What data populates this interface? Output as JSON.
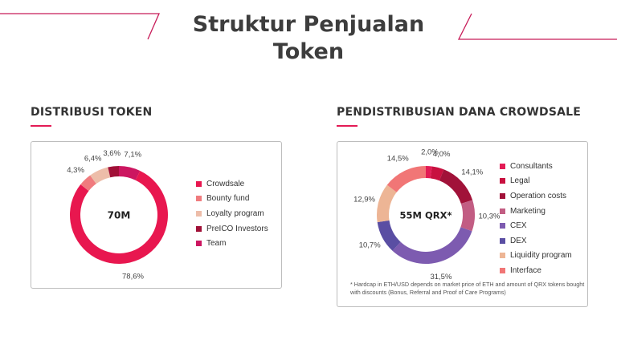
{
  "page": {
    "title_line1": "Struktur Penjualan",
    "title_line2": "Token"
  },
  "colors": {
    "crowdsale": "#e8174f",
    "bounty_fund": "#f07b7e",
    "loyalty_program": "#edbda9",
    "preico_investors": "#a01037",
    "team": "#cc1660",
    "consultants": "#e31b55",
    "legal": "#c8103f",
    "operation_costs": "#a11239",
    "marketing": "#c25d83",
    "cex": "#7d5bb0",
    "dex": "#5a4ea3",
    "liquidity_program": "#edb595",
    "interface": "#f17676",
    "accent": "#e31b55",
    "border": "#bdbdbd"
  },
  "chart_data": [
    {
      "type": "pie",
      "title": "DISTRIBUSI TOKEN",
      "center_label": "70M",
      "slices": [
        {
          "name": "Crowdsale",
          "value": 78.6,
          "label": "78,6%",
          "color": "#e8174f"
        },
        {
          "name": "Bounty fund",
          "value": 4.3,
          "label": "4,3%",
          "color": "#f07b7e"
        },
        {
          "name": "Loyalty program",
          "value": 6.4,
          "label": "6,4%",
          "color": "#edbda9"
        },
        {
          "name": "PreICO Investors",
          "value": 3.6,
          "label": "3,6%",
          "color": "#a01037"
        },
        {
          "name": "Team",
          "value": 7.1,
          "label": "7,1%",
          "color": "#cc1660"
        }
      ],
      "slice_order": [
        "Team",
        "Crowdsale",
        "Bounty fund",
        "Loyalty program",
        "PreICO Investors"
      ],
      "legend": [
        "Crowdsale",
        "Bounty fund",
        "Loyalty program",
        "PreICO Investors",
        "Team"
      ]
    },
    {
      "type": "pie",
      "title": "PENDISTRIBUSIAN DANA CROWDSALE",
      "center_label": "55M QRX*",
      "slices": [
        {
          "name": "Consultants",
          "value": 2.0,
          "label": "2,0%",
          "color": "#e31b55"
        },
        {
          "name": "Legal",
          "value": 4.0,
          "label": "4,0%",
          "color": "#c8103f"
        },
        {
          "name": "Operation costs",
          "value": 14.1,
          "label": "14,1%",
          "color": "#a11239"
        },
        {
          "name": "Marketing",
          "value": 10.3,
          "label": "10,3%",
          "color": "#c25d83"
        },
        {
          "name": "CEX",
          "value": 31.5,
          "label": "31,5%",
          "color": "#7d5bb0"
        },
        {
          "name": "DEX",
          "value": 10.7,
          "label": "10,7%",
          "color": "#5a4ea3"
        },
        {
          "name": "Liquidity program",
          "value": 12.9,
          "label": "12,9%",
          "color": "#edb595"
        },
        {
          "name": "Interface",
          "value": 14.5,
          "label": "14,5%",
          "color": "#f17676"
        }
      ],
      "legend": [
        "Consultants",
        "Legal",
        "Operation costs",
        "Marketing",
        "CEX",
        "DEX",
        "Liquidity program",
        "Interface"
      ],
      "footnote": "* Hardcap in ETH/USD depends on market price of ETH and amount of QRX tokens bought with discounts (Bonus, Referral and Proof of Care Programs)"
    }
  ]
}
